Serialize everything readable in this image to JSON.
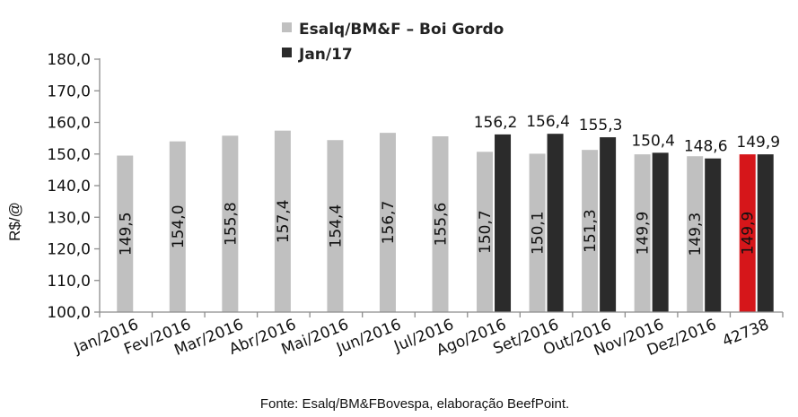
{
  "chart_data": {
    "type": "bar",
    "categories": [
      "Jan/2016",
      "Fev/2016",
      "Mar/2016",
      "Abr/2016",
      "Mai/2016",
      "Jun/2016",
      "Jul/2016",
      "Ago/2016",
      "Set/2016",
      "Out/2016",
      "Nov/2016",
      "Dez/2016",
      "42738"
    ],
    "series": [
      {
        "name": "Esalq/BM&F – Boi Gordo",
        "color": "#c0c0c0",
        "values": [
          149.5,
          154.0,
          155.8,
          157.4,
          154.4,
          156.7,
          155.6,
          150.7,
          150.1,
          151.3,
          149.9,
          149.3,
          149.9
        ],
        "labels": [
          "149,5",
          "154,0",
          "155,8",
          "157,4",
          "154,4",
          "156,7",
          "155,6",
          "150,7",
          "150,1",
          "151,3",
          "149,9",
          "149,3",
          "149,9"
        ],
        "highlight": {
          "index": 12,
          "color": "#d6161a"
        }
      },
      {
        "name": "Jan/17",
        "color": "#2b2b2b",
        "values": [
          null,
          null,
          null,
          null,
          null,
          null,
          null,
          156.2,
          156.4,
          155.3,
          150.4,
          148.6,
          149.9
        ],
        "labels": [
          "",
          "",
          "",
          "",
          "",
          "",
          "",
          "156,2",
          "156,4",
          "155,3",
          "150,4",
          "148,6",
          "149,9"
        ]
      }
    ],
    "ylabel": "R$/@",
    "ylim": [
      100,
      180
    ],
    "yticks": [
      "100,0",
      "110,0",
      "120,0",
      "130,0",
      "140,0",
      "150,0",
      "160,0",
      "170,0",
      "180,0"
    ],
    "legend_position": "top",
    "grid": false,
    "source": "Fonte: Esalq/BM&FBovespa, elaboração BeefPoint."
  }
}
